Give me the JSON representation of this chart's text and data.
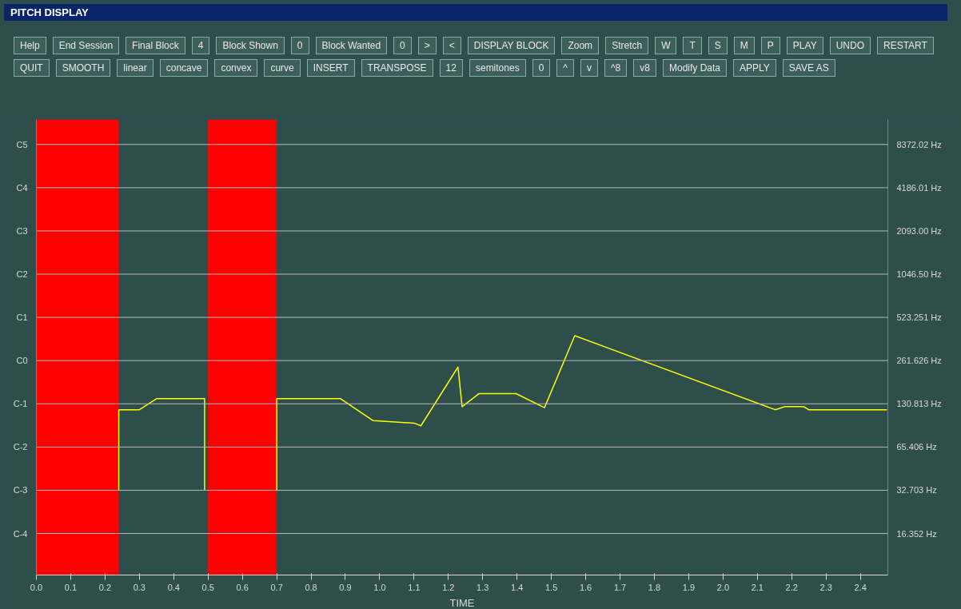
{
  "chart_data": {
    "type": "line",
    "title": "PITCH DISPLAY",
    "xlabel": "TIME",
    "annotations": [
      "Help",
      "End Session",
      "Final Block",
      "4",
      "Block Shown",
      "0",
      "Block Wanted",
      "0",
      ">",
      "<",
      "DISPLAY BLOCK",
      "Zoom",
      "Stretch",
      "W",
      "T",
      "S",
      "M",
      "P",
      "PLAY",
      "UNDO",
      "RESTART",
      "QUIT",
      "SMOOTH",
      "linear",
      "concave",
      "convex",
      "curve",
      "INSERT",
      "TRANSPOSE",
      "12",
      "semitones",
      "0",
      "^",
      "v",
      "^8",
      "v8",
      "Modify Data",
      "APPLY",
      "SAVE AS"
    ],
    "x": [
      0.24,
      0.24,
      0.3,
      0.35,
      0.49,
      0.49,
      0.6,
      0.7,
      0.7,
      0.886,
      0.98,
      1.1,
      1.12,
      1.228,
      1.24,
      1.289,
      1.397,
      1.48,
      1.568,
      2.152,
      2.18,
      2.235,
      2.25,
      2.477
    ],
    "series": [
      {
        "color": "#ffff00",
        "values": [
          32.7,
          119,
          119,
          142,
          142,
          32.7,
          null,
          32.7,
          142,
          142,
          100,
          96,
          92,
          236,
          125,
          154,
          154,
          123,
          390,
          119,
          125,
          125,
          119,
          119
        ]
      }
    ],
    "log": "y",
    "line_style": "solid",
    "marker": "none",
    "xlim": [
      0,
      2.48
    ],
    "ylim": [
      8.4,
      12500
    ],
    "ref_lines": [
      {
        "axis": "y",
        "value": 16.352,
        "label": "C-4",
        "color": "#b8b8b8"
      },
      {
        "axis": "y",
        "value": 32.703,
        "label": "C-3",
        "color": "#b8b8b8"
      },
      {
        "axis": "y",
        "value": 65.406,
        "label": "C-2",
        "color": "#b8b8b8"
      },
      {
        "axis": "y",
        "value": 130.813,
        "label": "C-1",
        "color": "#b8b8b8"
      },
      {
        "axis": "y",
        "value": 261.626,
        "label": "C0",
        "color": "#b8b8b8"
      },
      {
        "axis": "y",
        "value": 523.251,
        "label": "C1",
        "color": "#b8b8b8"
      },
      {
        "axis": "y",
        "value": 1046.5,
        "label": "C2",
        "color": "#b8b8b8"
      },
      {
        "axis": "y",
        "value": 2093.0,
        "label": "C3",
        "color": "#b8b8b8"
      },
      {
        "axis": "y",
        "value": 4186.01,
        "label": "C4",
        "color": "#b8b8b8"
      },
      {
        "axis": "y",
        "value": 8372.02,
        "label": "C5",
        "color": "#b8b8b8"
      }
    ],
    "xticks": [
      {
        "value": 0.0,
        "label": "0.0"
      },
      0.1,
      0.2,
      0.3,
      0.4,
      0.5,
      0.6,
      0.7,
      0.8,
      0.9,
      {
        "value": 1.0,
        "label": "1.0"
      },
      1.1,
      1.2,
      1.3,
      1.4,
      1.5,
      1.6,
      1.7,
      1.8,
      1.9,
      {
        "value": 2.0,
        "label": "2.0"
      },
      2.1,
      2.2,
      2.3,
      2.4
    ],
    "yticks": [
      {
        "value": 16.352,
        "label": "16.352 Hz"
      },
      {
        "value": 32.703,
        "label": "32.703 Hz"
      },
      {
        "value": 65.406,
        "label": "65.406 Hz"
      },
      {
        "value": 130.813,
        "label": "130.813 Hz"
      },
      {
        "value": 261.626,
        "label": "261.626 Hz"
      },
      {
        "value": 523.251,
        "label": "523.251 Hz"
      },
      {
        "value": 1046.5,
        "label": "1046.50 Hz"
      },
      {
        "value": 2093.0,
        "label": "2093.00 Hz"
      },
      {
        "value": 4186.01,
        "label": "4186.01 Hz"
      },
      {
        "value": 8372.02,
        "label": "8372.02 Hz"
      }
    ],
    "bands": [
      {
        "axis": "x",
        "from": 0.0,
        "to": 0.24,
        "color": "#ff0000"
      },
      {
        "axis": "x",
        "from": 0.5,
        "to": 0.7,
        "color": "#ff0000"
      }
    ]
  }
}
